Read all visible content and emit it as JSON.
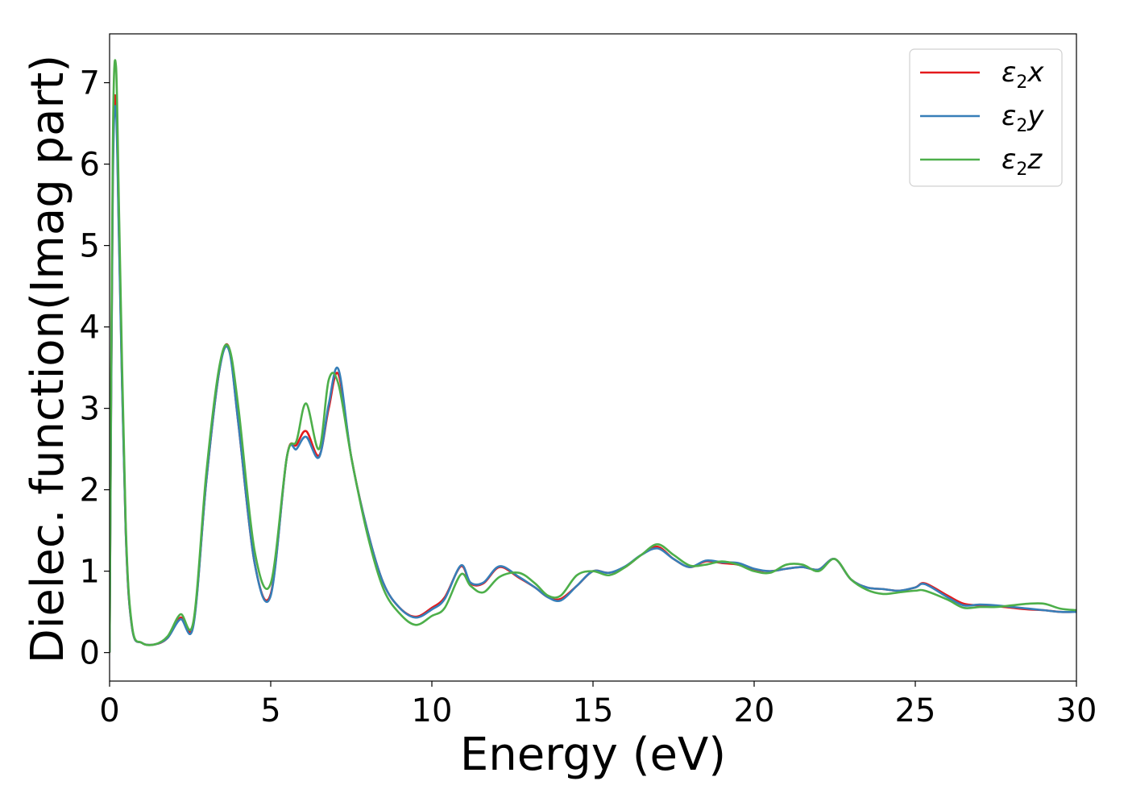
{
  "chart_data": {
    "type": "line",
    "title": "",
    "xlabel": "Energy (eV)",
    "ylabel": "Dielec. function(Imag part)",
    "xlim": [
      0,
      30
    ],
    "ylim": [
      -0.35,
      7.6
    ],
    "x_ticks": [
      "0",
      "5",
      "10",
      "15",
      "20",
      "25",
      "30"
    ],
    "y_ticks": [
      "0",
      "1",
      "2",
      "3",
      "4",
      "5",
      "6",
      "7"
    ],
    "grid": false,
    "legend_position": "top-right",
    "x": [
      0,
      0.1,
      0.2,
      0.3,
      0.5,
      0.7,
      1.0,
      1.4,
      1.8,
      2.2,
      2.6,
      3.0,
      3.4,
      3.7,
      4.0,
      4.5,
      5.0,
      5.5,
      5.8,
      6.1,
      6.5,
      6.8,
      7.1,
      7.5,
      8.0,
      8.5,
      9.0,
      9.5,
      10.0,
      10.4,
      10.9,
      11.2,
      11.6,
      12.1,
      12.7,
      13.2,
      13.6,
      14.0,
      14.5,
      15.0,
      15.5,
      16.0,
      16.5,
      17.0,
      17.5,
      18.0,
      18.5,
      19.0,
      19.5,
      20.0,
      20.5,
      21.0,
      21.5,
      22.0,
      22.5,
      23.0,
      23.5,
      24.0,
      24.5,
      25.0,
      25.3,
      26.0,
      26.5,
      27.0,
      27.5,
      28.0,
      28.5,
      29.0,
      29.5,
      30.0
    ],
    "series": [
      {
        "name": "x",
        "color": "#e41a1c",
        "values": [
          0,
          5.9,
          6.75,
          5.0,
          1.5,
          0.3,
          0.12,
          0.1,
          0.18,
          0.43,
          0.35,
          2.1,
          3.45,
          3.75,
          2.8,
          1.1,
          0.72,
          2.4,
          2.55,
          2.72,
          2.42,
          3.0,
          3.42,
          2.4,
          1.5,
          0.85,
          0.55,
          0.44,
          0.55,
          0.68,
          1.06,
          0.85,
          0.85,
          1.05,
          0.92,
          0.8,
          0.68,
          0.66,
          0.82,
          1.0,
          0.98,
          1.05,
          1.2,
          1.3,
          1.15,
          1.05,
          1.12,
          1.1,
          1.08,
          1.02,
          1.0,
          1.03,
          1.05,
          1.02,
          1.15,
          0.9,
          0.8,
          0.78,
          0.76,
          0.8,
          0.85,
          0.7,
          0.6,
          0.58,
          0.57,
          0.55,
          0.53,
          0.52,
          0.5,
          0.5
        ]
      },
      {
        "name": "y",
        "color": "#377eb8",
        "values": [
          0,
          5.7,
          6.65,
          4.9,
          1.5,
          0.3,
          0.12,
          0.1,
          0.18,
          0.41,
          0.33,
          2.1,
          3.45,
          3.72,
          2.8,
          1.1,
          0.7,
          2.4,
          2.5,
          2.65,
          2.4,
          3.05,
          3.48,
          2.4,
          1.5,
          0.85,
          0.55,
          0.43,
          0.53,
          0.66,
          1.07,
          0.86,
          0.86,
          1.06,
          0.93,
          0.8,
          0.68,
          0.64,
          0.82,
          1.0,
          0.98,
          1.06,
          1.2,
          1.28,
          1.15,
          1.05,
          1.13,
          1.11,
          1.1,
          1.03,
          1.0,
          1.03,
          1.05,
          1.02,
          1.15,
          0.9,
          0.8,
          0.78,
          0.76,
          0.8,
          0.84,
          0.68,
          0.58,
          0.59,
          0.58,
          0.56,
          0.54,
          0.52,
          0.5,
          0.5
        ]
      },
      {
        "name": "z",
        "color": "#4daf4a",
        "values": [
          0,
          6.2,
          7.2,
          5.3,
          1.6,
          0.32,
          0.12,
          0.1,
          0.2,
          0.47,
          0.38,
          2.2,
          3.5,
          3.75,
          3.0,
          1.25,
          0.85,
          2.4,
          2.6,
          3.06,
          2.5,
          3.35,
          3.3,
          2.4,
          1.45,
          0.78,
          0.48,
          0.34,
          0.45,
          0.55,
          0.96,
          0.82,
          0.74,
          0.93,
          0.98,
          0.85,
          0.7,
          0.7,
          0.95,
          1.0,
          0.95,
          1.05,
          1.2,
          1.33,
          1.2,
          1.07,
          1.08,
          1.12,
          1.08,
          1.0,
          0.98,
          1.08,
          1.08,
          1.0,
          1.15,
          0.9,
          0.77,
          0.72,
          0.74,
          0.76,
          0.76,
          0.65,
          0.55,
          0.56,
          0.56,
          0.58,
          0.6,
          0.6,
          0.54,
          0.52
        ]
      }
    ]
  }
}
